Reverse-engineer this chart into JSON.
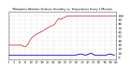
{
  "title": "Milwaukee Weather Outdoor Humidity vs. Temperature Every 5 Minutes",
  "bg_color": "#ffffff",
  "plot_bg_color": "#ffffff",
  "grid_color": "#bbbbbb",
  "red_color": "#cc0000",
  "blue_color": "#0000bb",
  "ylim": [
    -5,
    110
  ],
  "yticks": [
    0,
    10,
    20,
    30,
    40,
    50,
    60,
    70,
    80,
    90,
    100
  ],
  "red_x": [
    0,
    4,
    8,
    12,
    16,
    20,
    24,
    28,
    32,
    36,
    40,
    44,
    48,
    52,
    56,
    60,
    64,
    68,
    72,
    76,
    80,
    84,
    88,
    92,
    96,
    100,
    104,
    108,
    112,
    116,
    120,
    124,
    128,
    132,
    136,
    140,
    144,
    148,
    152,
    156,
    160,
    164,
    168,
    172,
    176,
    180,
    184,
    188,
    192,
    196,
    200,
    204,
    208,
    212,
    216,
    220,
    224,
    228,
    232,
    236,
    240,
    244,
    248,
    252,
    256,
    260,
    264,
    268,
    272,
    276,
    280,
    284,
    288,
    292,
    296,
    300,
    310,
    320,
    330,
    340,
    350,
    360,
    370,
    380,
    390,
    400,
    410,
    420,
    430,
    440,
    450,
    460,
    470,
    480,
    490,
    500,
    510,
    520,
    530,
    540,
    550,
    560,
    570,
    580,
    590,
    600
  ],
  "red_y": [
    30,
    30,
    30,
    30,
    30,
    30,
    30,
    30,
    30,
    30,
    30,
    30,
    30,
    30,
    30,
    30,
    30,
    30,
    30,
    28,
    28,
    26,
    26,
    26,
    26,
    28,
    30,
    32,
    34,
    38,
    42,
    44,
    46,
    48,
    50,
    50,
    52,
    54,
    54,
    56,
    56,
    58,
    58,
    60,
    60,
    62,
    62,
    63,
    64,
    65,
    66,
    68,
    68,
    70,
    70,
    72,
    72,
    74,
    74,
    74,
    76,
    76,
    78,
    78,
    80,
    82,
    85,
    88,
    90,
    92,
    94,
    94,
    92,
    92,
    92,
    94,
    96,
    98,
    100,
    100,
    100,
    100,
    100,
    100,
    100,
    100,
    100,
    100,
    100,
    100,
    100,
    100,
    100,
    100,
    100,
    100,
    100,
    100,
    100,
    100,
    100,
    100,
    100,
    100,
    100,
    100
  ],
  "blue_x": [
    0,
    20,
    40,
    60,
    80,
    100,
    120,
    140,
    155,
    175,
    200,
    220,
    240,
    265,
    285,
    315,
    345,
    370,
    400,
    430,
    460,
    480,
    510,
    540,
    565,
    590
  ],
  "blue_y": [
    5,
    5,
    5,
    5,
    5,
    5,
    5,
    5,
    5,
    5,
    5,
    5,
    5,
    5,
    5,
    5,
    5,
    5,
    8,
    5,
    10,
    5,
    5,
    5,
    8,
    5
  ],
  "xmin": 0,
  "xmax": 600,
  "n_xticks": 20,
  "title_fontsize": 2.5,
  "tick_fontsize": 2.8,
  "linewidth_red": 0.5,
  "linewidth_blue": 0.7
}
